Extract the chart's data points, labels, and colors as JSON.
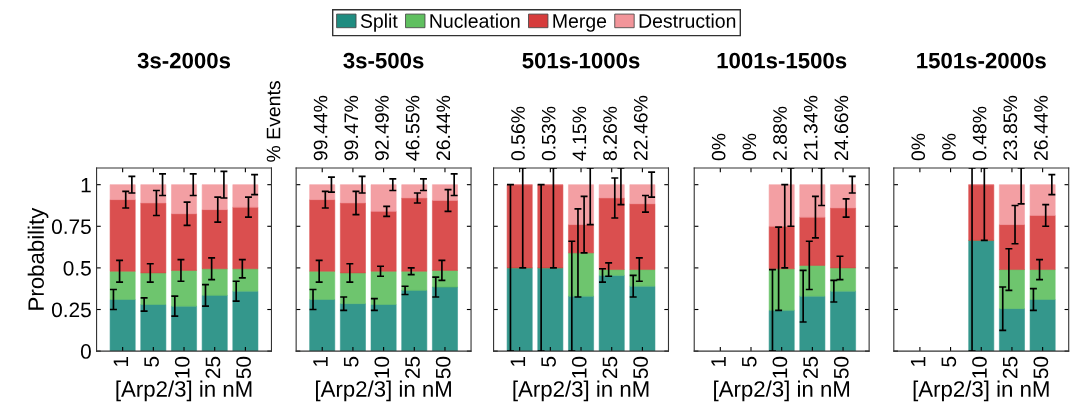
{
  "chart_data": [
    {
      "type": "bar",
      "stacked": true,
      "title": "3s-2000s",
      "xlabel": "[Arp2/3] in nM",
      "ylabel": "Probability",
      "categories": [
        "1",
        "5",
        "10",
        "25",
        "50"
      ],
      "ylim": [
        0,
        1.1
      ],
      "yticks": [
        0,
        0.25,
        0.5,
        0.75,
        1
      ],
      "grid": false,
      "legend": "top",
      "series": [
        {
          "name": "Split",
          "color": "#1f8c80",
          "values": [
            0.31,
            0.28,
            0.27,
            0.335,
            0.36
          ],
          "errors": [
            0.06,
            0.04,
            0.06,
            0.065,
            0.06
          ]
        },
        {
          "name": "Nucleation",
          "color": "#5fbf5f",
          "values": [
            0.17,
            0.19,
            0.215,
            0.16,
            0.135
          ],
          "errors": [
            0.065,
            0.055,
            0.065,
            0.065,
            0.055
          ]
        },
        {
          "name": "Merge",
          "color": "#d63c3c",
          "values": [
            0.43,
            0.42,
            0.34,
            0.355,
            0.37
          ],
          "errors": [
            0.05,
            0.075,
            0.07,
            0.075,
            0.06
          ]
        },
        {
          "name": "Destruction",
          "color": "#f2959a",
          "values": [
            0.09,
            0.11,
            0.175,
            0.15,
            0.135
          ],
          "errors": [
            0.05,
            0.065,
            0.065,
            0.08,
            0.06
          ]
        }
      ]
    },
    {
      "type": "bar",
      "stacked": true,
      "title": "3s-500s",
      "xlabel": "[Arp2/3] in nM",
      "x2label": "% Events",
      "categories": [
        "1",
        "5",
        "10",
        "25",
        "50"
      ],
      "ylim": [
        0,
        1.1
      ],
      "yticks": [
        0,
        0.25,
        0.5,
        0.75,
        1
      ],
      "grid": false,
      "tick_labels": "x",
      "annotations": [
        "99.44%",
        "99.47%",
        "92.49%",
        "46.55%",
        "26.44%"
      ],
      "series": [
        {
          "color": "#1f8c80",
          "values": [
            0.31,
            0.285,
            0.28,
            0.365,
            0.385
          ],
          "errors": [
            0.06,
            0.04,
            0.035,
            0.025,
            0.06
          ]
        },
        {
          "color": "#5fbf5f",
          "values": [
            0.17,
            0.185,
            0.2,
            0.115,
            0.1
          ],
          "errors": [
            0.065,
            0.055,
            0.03,
            0.02,
            0.06
          ]
        },
        {
          "color": "#d63c3c",
          "values": [
            0.43,
            0.42,
            0.36,
            0.44,
            0.42
          ],
          "errors": [
            0.05,
            0.07,
            0.03,
            0.03,
            0.065
          ]
        },
        {
          "color": "#f2959a",
          "values": [
            0.09,
            0.11,
            0.16,
            0.08,
            0.095
          ],
          "errors": [
            0.045,
            0.05,
            0.035,
            0.035,
            0.065
          ]
        }
      ]
    },
    {
      "type": "bar",
      "stacked": true,
      "title": "501s-1000s",
      "xlabel": "[Arp2/3] in nM",
      "categories": [
        "1",
        "5",
        "10",
        "25",
        "50"
      ],
      "ylim": [
        0,
        1.1
      ],
      "yticks": [
        0,
        0.25,
        0.5,
        0.75,
        1
      ],
      "grid": false,
      "tick_labels": "x",
      "annotations": [
        "0.56%",
        "0.53%",
        "4.15%",
        "8.26%",
        "22.46%"
      ],
      "series": [
        {
          "color": "#1f8c80",
          "values": [
            0.5,
            0.5,
            0.33,
            0.455,
            0.39
          ],
          "errors": [
            0.5,
            0.5,
            0.33,
            0.04,
            0.065
          ]
        },
        {
          "color": "#5fbf5f",
          "values": [
            0,
            0,
            0.26,
            0.035,
            0.1
          ],
          "errors": [
            null,
            null,
            0.265,
            0.04,
            0.07
          ]
        },
        {
          "color": "#d63c3c",
          "values": [
            0.5,
            0.5,
            0.17,
            0.43,
            0.395
          ],
          "errors": [
            [
              0.5,
              1.1
            ],
            [
              0.5,
              1.1
            ],
            0.17,
            0.12,
            0.05
          ]
        },
        {
          "color": "#f2959a",
          "values": [
            0,
            0,
            0.24,
            0.08,
            0.115
          ],
          "errors": [
            null,
            null,
            [
              0.76,
              1.1
            ],
            [
              0.88,
              1.1
            ],
            0.075
          ]
        }
      ]
    },
    {
      "type": "bar",
      "stacked": true,
      "title": "1001s-1500s",
      "xlabel": "[Arp2/3] in nM",
      "categories": [
        "1",
        "5",
        "10",
        "25",
        "50"
      ],
      "ylim": [
        0,
        1.1
      ],
      "yticks": [
        0,
        0.25,
        0.5,
        0.75,
        1
      ],
      "grid": false,
      "tick_labels": "x",
      "annotations": [
        "0%",
        "0%",
        "2.88%",
        "21.34%",
        "24.66%"
      ],
      "series": [
        {
          "color": "#1f8c80",
          "values": [
            null,
            null,
            0.245,
            0.33,
            0.36
          ],
          "errors": [
            null,
            null,
            0.245,
            0.155,
            0.065
          ]
        },
        {
          "color": "#5fbf5f",
          "values": [
            null,
            null,
            0.25,
            0.185,
            0.14
          ],
          "errors": [
            null,
            null,
            0.25,
            0.145,
            0.07
          ]
        },
        {
          "color": "#d63c3c",
          "values": [
            null,
            null,
            0.255,
            0.29,
            0.36
          ],
          "errors": [
            null,
            null,
            0.25,
            0.125,
            0.055
          ]
        },
        {
          "color": "#f2959a",
          "values": [
            null,
            null,
            0.25,
            0.195,
            0.14
          ],
          "errors": [
            null,
            null,
            [
              0.75,
              1.1
            ],
            [
              0.875,
              1.1
            ],
            0.05
          ]
        }
      ]
    },
    {
      "type": "bar",
      "stacked": true,
      "title": "1501s-2000s",
      "xlabel": "[Arp2/3] in nM",
      "categories": [
        "1",
        "5",
        "10",
        "25",
        "50"
      ],
      "ylim": [
        0,
        1.1
      ],
      "yticks": [
        0,
        0.25,
        0.5,
        0.75,
        1
      ],
      "grid": false,
      "tick_labels": "x",
      "annotations": [
        "0%",
        "0%",
        "0.48%",
        "23.85%",
        "26.44%"
      ],
      "series": [
        {
          "color": "#1f8c80",
          "values": [
            null,
            null,
            0.665,
            0.255,
            0.31
          ],
          "errors": [
            null,
            null,
            [
              0,
              1.1
            ],
            0.13,
            0.065
          ]
        },
        {
          "color": "#5fbf5f",
          "values": [
            null,
            null,
            0,
            0.235,
            0.18
          ],
          "errors": [
            null,
            null,
            null,
            0.125,
            0.06
          ]
        },
        {
          "color": "#d63c3c",
          "values": [
            null,
            null,
            0.335,
            0.27,
            0.325
          ],
          "errors": [
            null,
            null,
            [
              0.665,
              1.1
            ],
            0.115,
            0.065
          ]
        },
        {
          "color": "#f2959a",
          "values": [
            null,
            null,
            0,
            0.24,
            0.185
          ],
          "errors": [
            null,
            null,
            null,
            [
              0.885,
              1.1
            ],
            0.06
          ]
        }
      ]
    }
  ]
}
